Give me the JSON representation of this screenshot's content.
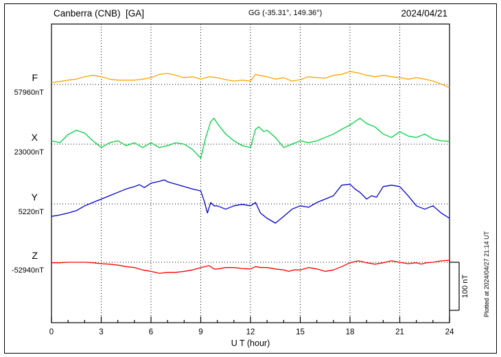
{
  "header": {
    "station": "Canberra (CNB)  [GA]",
    "coords": "GG (-35.31°, 149.36°)",
    "date": "2024/04/21"
  },
  "axis": {
    "xlabel": "U T (hour)",
    "xmin": 0,
    "xmax": 24,
    "major_tick_hours": [
      0,
      3,
      6,
      9,
      12,
      15,
      18,
      21,
      24
    ],
    "minor_step_hours": 1,
    "grid_hours": [
      3,
      6,
      9,
      12,
      15,
      18,
      21
    ]
  },
  "scale_bar": {
    "label": "100 nT",
    "nT": 100
  },
  "side_note": "Plotted at 2024/04/27 21:14 UT",
  "chart_data": {
    "type": "line",
    "title": "Canberra (CNB) [GA] magnetogram",
    "date": "2024/04/21",
    "xlabel": "U T (hour)",
    "x_range": [
      0,
      24
    ],
    "grid": "dotted vertical line every 3 h; dotted horizontal baseline per component",
    "units": "nT deviation from each component baseline value",
    "series": [
      {
        "name": "F",
        "baseline_label": "57960nT",
        "baseline_nT": 57960,
        "color": "#ffa500",
        "points": [
          [
            0,
            4
          ],
          [
            0.5,
            6
          ],
          [
            1,
            9
          ],
          [
            1.5,
            11
          ],
          [
            2,
            16
          ],
          [
            2.5,
            19
          ],
          [
            3,
            16
          ],
          [
            3.5,
            11
          ],
          [
            4,
            9
          ],
          [
            4.5,
            9
          ],
          [
            5,
            9
          ],
          [
            5.5,
            11
          ],
          [
            6,
            14
          ],
          [
            6.5,
            21
          ],
          [
            7,
            23
          ],
          [
            7.5,
            19
          ],
          [
            8,
            14
          ],
          [
            8.5,
            16
          ],
          [
            9,
            11
          ],
          [
            9.5,
            16
          ],
          [
            10,
            14
          ],
          [
            10.5,
            10
          ],
          [
            11,
            7
          ],
          [
            11.5,
            9
          ],
          [
            12,
            7
          ],
          [
            12.3,
            21
          ],
          [
            12.5,
            19
          ],
          [
            13,
            16
          ],
          [
            13.5,
            11
          ],
          [
            14,
            14
          ],
          [
            14.5,
            7
          ],
          [
            15,
            10
          ],
          [
            15.5,
            16
          ],
          [
            16,
            14
          ],
          [
            16.5,
            13
          ],
          [
            17,
            19
          ],
          [
            17.5,
            21
          ],
          [
            18,
            27
          ],
          [
            18.5,
            24
          ],
          [
            19,
            19
          ],
          [
            19.5,
            16
          ],
          [
            20,
            19
          ],
          [
            20.5,
            16
          ],
          [
            21,
            14
          ],
          [
            21.5,
            11
          ],
          [
            22,
            14
          ],
          [
            22.5,
            11
          ],
          [
            23,
            7
          ],
          [
            23.5,
            1
          ],
          [
            24,
            -7
          ]
        ]
      },
      {
        "name": "X",
        "baseline_label": "23000nT",
        "baseline_nT": 23000,
        "color": "#00d040",
        "points": [
          [
            0,
            7
          ],
          [
            0.5,
            3
          ],
          [
            1,
            20
          ],
          [
            1.5,
            29
          ],
          [
            2,
            23
          ],
          [
            2.5,
            7
          ],
          [
            3,
            -7
          ],
          [
            3.5,
            3
          ],
          [
            4,
            7
          ],
          [
            4.5,
            -3
          ],
          [
            5,
            3
          ],
          [
            5.5,
            -7
          ],
          [
            6,
            3
          ],
          [
            6.5,
            -7
          ],
          [
            7,
            -3
          ],
          [
            7.5,
            3
          ],
          [
            8,
            0
          ],
          [
            8.5,
            -11
          ],
          [
            9,
            -29
          ],
          [
            9.3,
            14
          ],
          [
            9.6,
            47
          ],
          [
            9.8,
            54
          ],
          [
            10,
            43
          ],
          [
            10.5,
            21
          ],
          [
            11,
            7
          ],
          [
            11.5,
            -3
          ],
          [
            12,
            -7
          ],
          [
            12.3,
            31
          ],
          [
            12.5,
            36
          ],
          [
            12.8,
            26
          ],
          [
            13,
            29
          ],
          [
            13.5,
            14
          ],
          [
            14,
            -7
          ],
          [
            14.5,
            0
          ],
          [
            15,
            7
          ],
          [
            15.5,
            3
          ],
          [
            16,
            7
          ],
          [
            16.5,
            14
          ],
          [
            17,
            21
          ],
          [
            17.5,
            31
          ],
          [
            18,
            40
          ],
          [
            18.6,
            54
          ],
          [
            19,
            43
          ],
          [
            19.5,
            36
          ],
          [
            20,
            21
          ],
          [
            20.5,
            14
          ],
          [
            21,
            26
          ],
          [
            21.5,
            17
          ],
          [
            22,
            14
          ],
          [
            22.5,
            21
          ],
          [
            23,
            11
          ],
          [
            23.5,
            7
          ],
          [
            24,
            6
          ]
        ]
      },
      {
        "name": "Y",
        "baseline_label": "5220nT",
        "baseline_nT": 5220,
        "color": "#0000cc",
        "points": [
          [
            0,
            -26
          ],
          [
            0.5,
            -23
          ],
          [
            1,
            -19
          ],
          [
            1.5,
            -14
          ],
          [
            2,
            -4
          ],
          [
            2.5,
            3
          ],
          [
            3,
            10
          ],
          [
            3.5,
            17
          ],
          [
            4,
            24
          ],
          [
            4.5,
            31
          ],
          [
            5,
            36
          ],
          [
            5.3,
            40
          ],
          [
            5.6,
            34
          ],
          [
            6,
            43
          ],
          [
            6.5,
            47
          ],
          [
            6.8,
            50
          ],
          [
            7,
            46
          ],
          [
            7.5,
            41
          ],
          [
            8,
            36
          ],
          [
            8.5,
            31
          ],
          [
            9,
            27
          ],
          [
            9.2,
            7
          ],
          [
            9.4,
            -19
          ],
          [
            9.6,
            3
          ],
          [
            9.8,
            -4
          ],
          [
            10,
            -4
          ],
          [
            10.5,
            -11
          ],
          [
            11,
            -4
          ],
          [
            11.5,
            -1
          ],
          [
            12,
            -4
          ],
          [
            12.3,
            3
          ],
          [
            12.6,
            -19
          ],
          [
            13,
            -30
          ],
          [
            13.5,
            -40
          ],
          [
            14,
            -26
          ],
          [
            14.5,
            -11
          ],
          [
            15,
            -4
          ],
          [
            15.5,
            -7
          ],
          [
            16,
            3
          ],
          [
            16.5,
            10
          ],
          [
            17,
            17
          ],
          [
            17.5,
            39
          ],
          [
            18,
            41
          ],
          [
            18.3,
            31
          ],
          [
            18.6,
            24
          ],
          [
            19,
            10
          ],
          [
            19.3,
            17
          ],
          [
            19.6,
            14
          ],
          [
            20,
            36
          ],
          [
            20.5,
            39
          ],
          [
            21,
            36
          ],
          [
            21.5,
            17
          ],
          [
            22,
            -4
          ],
          [
            22.5,
            -11
          ],
          [
            23,
            -4
          ],
          [
            23.5,
            -19
          ],
          [
            24,
            -30
          ]
        ]
      },
      {
        "name": "Z",
        "baseline_label": "-52940nT",
        "baseline_nT": -52940,
        "color": "#ff0000",
        "points": [
          [
            0,
            -1
          ],
          [
            0.5,
            -1
          ],
          [
            1,
            0
          ],
          [
            1.5,
            0
          ],
          [
            2,
            0
          ],
          [
            2.5,
            -1
          ],
          [
            3,
            -3
          ],
          [
            3.5,
            -4
          ],
          [
            4,
            -6
          ],
          [
            4.5,
            -9
          ],
          [
            5,
            -11
          ],
          [
            5.5,
            -16
          ],
          [
            6,
            -19
          ],
          [
            6.5,
            -23
          ],
          [
            7,
            -21
          ],
          [
            7.5,
            -21
          ],
          [
            8,
            -19
          ],
          [
            8.5,
            -16
          ],
          [
            9,
            -11
          ],
          [
            9.5,
            -7
          ],
          [
            9.8,
            -14
          ],
          [
            10,
            -14
          ],
          [
            10.5,
            -11
          ],
          [
            11,
            -11
          ],
          [
            11.5,
            -13
          ],
          [
            12,
            -14
          ],
          [
            12.3,
            -9
          ],
          [
            12.6,
            -11
          ],
          [
            13,
            -11
          ],
          [
            13.5,
            -14
          ],
          [
            14,
            -16
          ],
          [
            14.3,
            -19
          ],
          [
            14.6,
            -16
          ],
          [
            15,
            -16
          ],
          [
            15.5,
            -11
          ],
          [
            16,
            -14
          ],
          [
            16.5,
            -19
          ],
          [
            17,
            -16
          ],
          [
            17.5,
            -9
          ],
          [
            18,
            -1
          ],
          [
            18.5,
            3
          ],
          [
            19,
            -1
          ],
          [
            19.5,
            -4
          ],
          [
            20,
            -1
          ],
          [
            20.5,
            3
          ],
          [
            21,
            0
          ],
          [
            21.5,
            -3
          ],
          [
            22,
            -1
          ],
          [
            22.3,
            -4
          ],
          [
            22.6,
            -1
          ],
          [
            23,
            0
          ],
          [
            23.5,
            3
          ],
          [
            24,
            4
          ]
        ]
      }
    ]
  }
}
